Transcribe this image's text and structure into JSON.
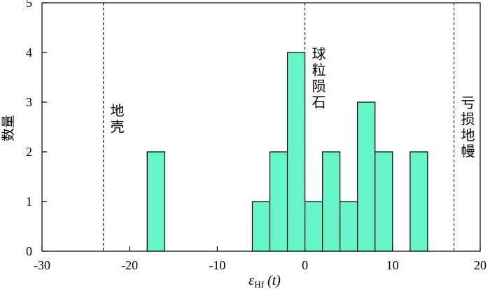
{
  "chart_data": {
    "type": "bar",
    "title": "",
    "xlabel": {
      "symbol": "ε",
      "subscript": "Hf",
      "suffix": " (t)"
    },
    "ylabel": "数量",
    "xlim": [
      -30,
      20
    ],
    "ylim": [
      0,
      5
    ],
    "xticks": [
      "-30",
      "-20",
      "-10",
      "0",
      "10",
      "20"
    ],
    "yticks": [
      "0",
      "1",
      "2",
      "3",
      "4",
      "5"
    ],
    "bin_width": 2,
    "bins": [
      {
        "x0": -18,
        "x1": -16,
        "count": 2
      },
      {
        "x0": -6,
        "x1": -4,
        "count": 1
      },
      {
        "x0": -4,
        "x1": -2,
        "count": 2
      },
      {
        "x0": -2,
        "x1": 0,
        "count": 4
      },
      {
        "x0": 0,
        "x1": 2,
        "count": 1
      },
      {
        "x0": 2,
        "x1": 4,
        "count": 2
      },
      {
        "x0": 4,
        "x1": 6,
        "count": 1
      },
      {
        "x0": 6,
        "x1": 8,
        "count": 3
      },
      {
        "x0": 8,
        "x1": 10,
        "count": 2
      },
      {
        "x0": 12,
        "x1": 14,
        "count": 2
      }
    ],
    "bar_color": "#66f5c8",
    "reference_lines": [
      {
        "x": -23,
        "label": "地壳"
      },
      {
        "x": 0,
        "label": "球粒陨石"
      },
      {
        "x": 17,
        "label": "亏损地幔"
      }
    ],
    "grid": false
  }
}
